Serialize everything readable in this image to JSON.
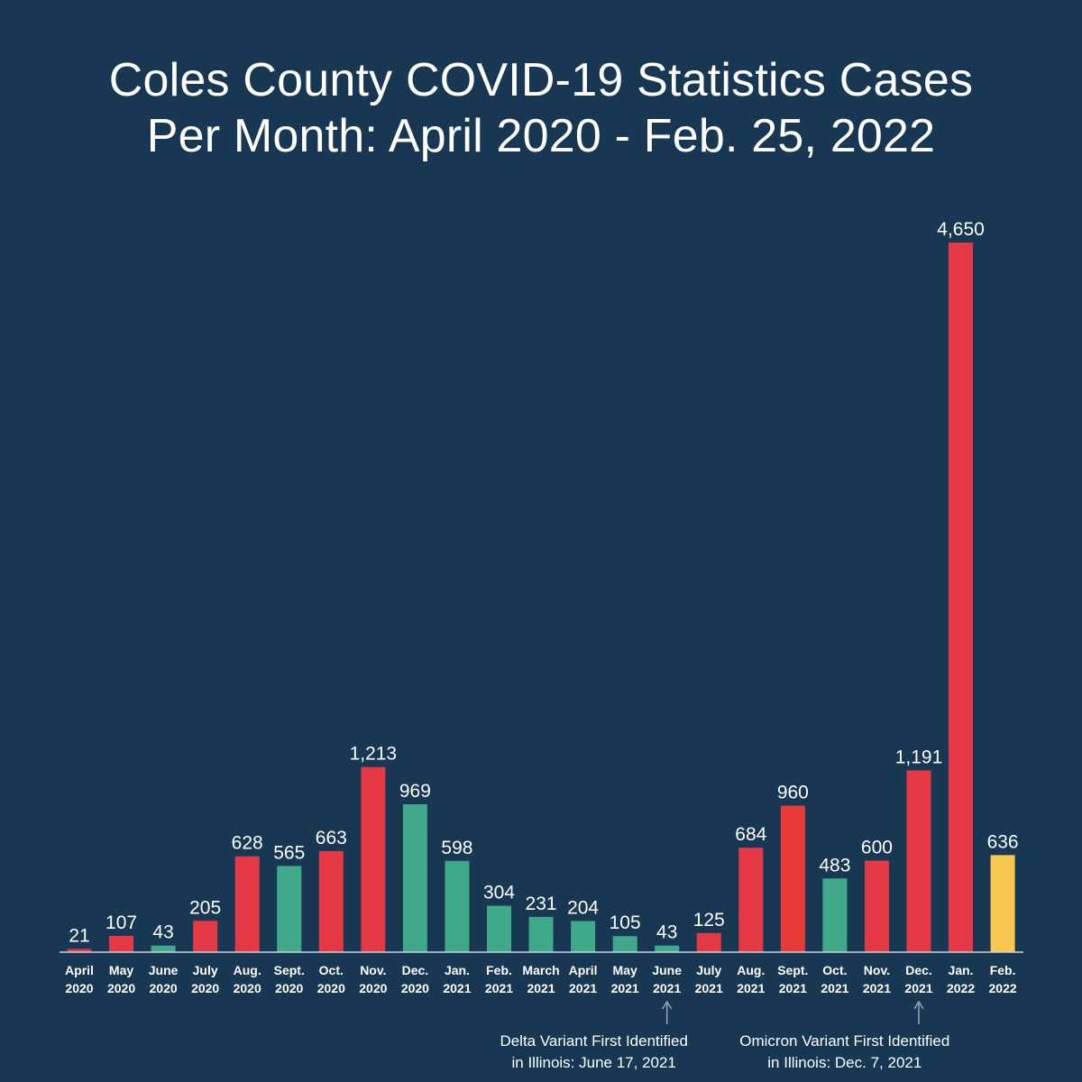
{
  "chart_data": {
    "type": "bar",
    "title_lines": [
      "Coles County COVID-19 Statistics Cases",
      "Per Month: April 2020 - Feb. 25, 2022"
    ],
    "xlabel": "",
    "ylabel": "",
    "ylim": [
      0,
      4650
    ],
    "grid": false,
    "legend": "none",
    "categories": [
      [
        "April",
        "2020"
      ],
      [
        "May",
        "2020"
      ],
      [
        "June",
        "2020"
      ],
      [
        "July",
        "2020"
      ],
      [
        "Aug.",
        "2020"
      ],
      [
        "Sept.",
        "2020"
      ],
      [
        "Oct.",
        "2020"
      ],
      [
        "Nov.",
        "2020"
      ],
      [
        "Dec.",
        "2020"
      ],
      [
        "Jan.",
        "2021"
      ],
      [
        "Feb.",
        "2021"
      ],
      [
        "March",
        "2021"
      ],
      [
        "April",
        "2021"
      ],
      [
        "May",
        "2021"
      ],
      [
        "June",
        "2021"
      ],
      [
        "July",
        "2021"
      ],
      [
        "Aug.",
        "2021"
      ],
      [
        "Sept.",
        "2021"
      ],
      [
        "Oct.",
        "2021"
      ],
      [
        "Nov.",
        "2021"
      ],
      [
        "Dec.",
        "2021"
      ],
      [
        "Jan.",
        "2022"
      ],
      [
        "Feb.",
        "2022"
      ]
    ],
    "values": [
      21,
      107,
      43,
      205,
      628,
      565,
      663,
      1213,
      969,
      598,
      304,
      231,
      204,
      105,
      43,
      125,
      684,
      960,
      483,
      600,
      1191,
      4650,
      636
    ],
    "value_labels": [
      "21",
      "107",
      "43",
      "205",
      "628",
      "565",
      "663",
      "1,213",
      "969",
      "598",
      "304",
      "231",
      "204",
      "105",
      "43",
      "125",
      "684",
      "960",
      "483",
      "600",
      "1,191",
      "4,650",
      "636"
    ],
    "bar_colors": [
      "#e63946",
      "#e63946",
      "#3fa98a",
      "#e63946",
      "#e63946",
      "#3fa98a",
      "#e63946",
      "#e63946",
      "#3fa98a",
      "#3fa98a",
      "#3fa98a",
      "#3fa98a",
      "#3fa98a",
      "#3fa98a",
      "#3fa98a",
      "#e63946",
      "#e63946",
      "#e83a36",
      "#3fa98a",
      "#e63946",
      "#e63946",
      "#e63946",
      "#f9c74f"
    ],
    "annotations": [
      {
        "category_index": 14,
        "lines": [
          "Delta Variant First Identified",
          "in Illinois: June 17, 2021"
        ]
      },
      {
        "category_index": 20,
        "lines": [
          "Omicron Variant First Identified",
          "in Illinois: Dec. 7, 2021"
        ]
      }
    ]
  },
  "colors": {
    "background": "#173753",
    "text": "#ffffff",
    "axis": "#c9d3dc",
    "arrow": "#9aa7b4"
  }
}
